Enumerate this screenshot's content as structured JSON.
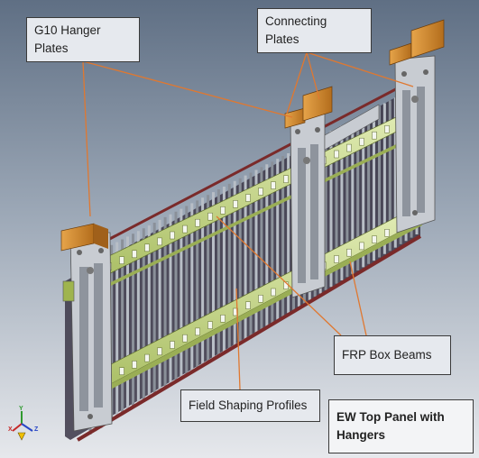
{
  "labels": {
    "g10_line1": "G10 Hanger",
    "g10_line2": "Plates",
    "conn_line1": "Connecting",
    "conn_line2": "Plates",
    "frp": "FRP Box Beams",
    "fsp": "Field Shaping Profiles",
    "title_line1": "EW Top Panel with",
    "title_line2": "Hangers"
  },
  "axes": {
    "x": "X",
    "y": "Y",
    "z": "Z"
  },
  "colors": {
    "background_top": "#5f6f84",
    "background_bottom": "#e6e8ec",
    "leader": "#e07830",
    "beam": "#c7d98a",
    "plate": "#c8ccd2",
    "hanger": "#d08a2c",
    "profile": "#9ca2ab"
  }
}
